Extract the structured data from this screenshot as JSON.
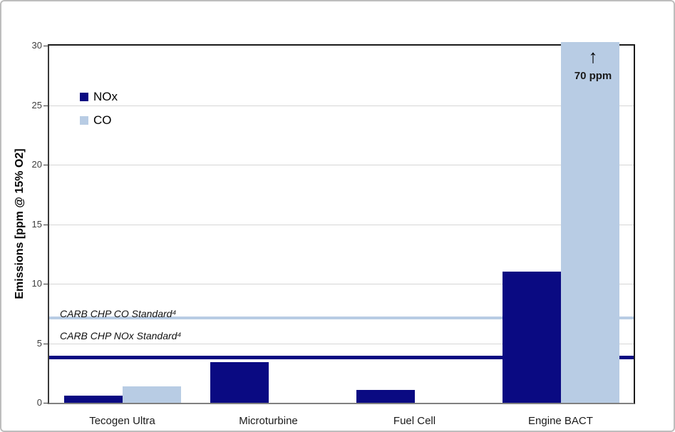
{
  "chart_data": {
    "type": "bar",
    "title": "",
    "ylabel": "Emissions [ppm @ 15% O2]",
    "xlabel": "",
    "ylim": [
      0,
      30
    ],
    "yticks": [
      0,
      5,
      10,
      15,
      20,
      25,
      30
    ],
    "grid": true,
    "legend_position": "inside-upper-left",
    "categories": [
      "Tecogen Ultra",
      "Microturbine",
      "Fuel Cell",
      "Engine BACT"
    ],
    "series": [
      {
        "name": "NOx",
        "color": "#0a0a82",
        "values": [
          0.6,
          3.4,
          1.1,
          11
        ]
      },
      {
        "name": "CO",
        "color": "#b8cce4",
        "values": [
          1.4,
          null,
          null,
          70
        ]
      }
    ],
    "reference_lines": [
      {
        "label": "CARB CHP CO Standard⁴",
        "value": 7.1,
        "color": "#b8cce4",
        "thickness": 4
      },
      {
        "label": "CARB CHP NOx Standard⁴",
        "value": 3.8,
        "color": "#0a0a82",
        "thickness": 5
      }
    ],
    "annotations": [
      {
        "text": "70 ppm",
        "arrow": "↑",
        "note": "Engine BACT CO bar is off-scale, clipped at 30 ppm"
      }
    ]
  },
  "legend": {
    "items": [
      {
        "label": "NOx",
        "color": "#0a0a82"
      },
      {
        "label": "CO",
        "color": "#b8cce4"
      }
    ]
  },
  "colors": {
    "nox": "#0a0a82",
    "co": "#b8cce4",
    "gridline": "#d6d6d6",
    "axis": "#1a1a1a",
    "baseline": "#808080",
    "frame_border": "#bdbdbd"
  }
}
